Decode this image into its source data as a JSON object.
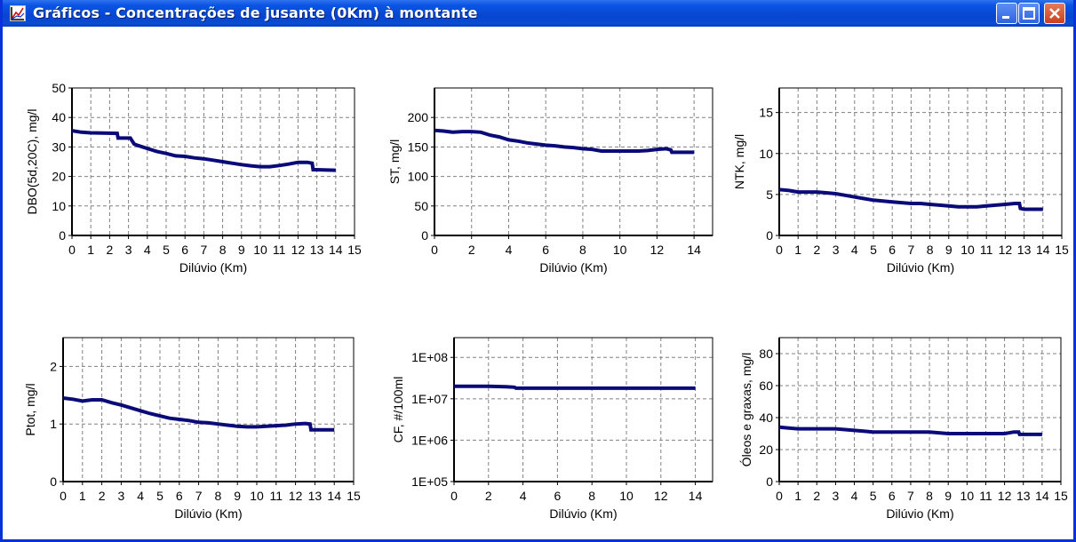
{
  "window": {
    "title": "Gráficos - Concentrações de jusante (0Km) à montante",
    "icon": "chart-icon",
    "buttons": [
      "minimize-icon",
      "maximize-icon",
      "close-icon"
    ]
  },
  "chart_data": [
    {
      "type": "line",
      "title": "",
      "xlabel": "Dilúvio (Km)",
      "ylabel": "DBO(5d,20C), mg/l",
      "xlim": [
        0,
        15
      ],
      "ylim": [
        0,
        50
      ],
      "xticks": [
        "0",
        "1",
        "2",
        "3",
        "4",
        "5",
        "6",
        "7",
        "8",
        "9",
        "10",
        "11",
        "12",
        "13",
        "14",
        "15"
      ],
      "yticks": [
        "0",
        "10",
        "20",
        "30",
        "40",
        "50"
      ],
      "grid": true,
      "color": "#0a0a78",
      "x": [
        0,
        0.5,
        1.0,
        2.4,
        2.45,
        3.1,
        3.3,
        3.5,
        4,
        4.5,
        5,
        5.5,
        6,
        6.5,
        7,
        7.5,
        8,
        8.5,
        9,
        9.5,
        10,
        10.5,
        11,
        11.5,
        12,
        12.5,
        12.75,
        12.8,
        13,
        14
      ],
      "y": [
        35.5,
        35,
        34.8,
        34.6,
        33,
        33,
        31,
        30.5,
        29.5,
        28.5,
        27.8,
        27,
        26.8,
        26.3,
        26,
        25.5,
        25,
        24.5,
        24,
        23.6,
        23.3,
        23.3,
        23.7,
        24.2,
        24.8,
        24.8,
        24.5,
        22.3,
        22.3,
        22.1
      ]
    },
    {
      "type": "line",
      "title": "",
      "xlabel": "Dilúvio (Km)",
      "ylabel": "ST, mg/l",
      "xlim": [
        0,
        15
      ],
      "ylim": [
        0,
        250
      ],
      "xticks": [
        "0",
        "2",
        "4",
        "6",
        "8",
        "10",
        "12",
        "14"
      ],
      "yticks": [
        "0",
        "50",
        "100",
        "150",
        "200"
      ],
      "grid": true,
      "color": "#0a0a78",
      "x": [
        0,
        0.5,
        1,
        1.5,
        2,
        2.5,
        3,
        3.5,
        4,
        4.5,
        5,
        5.5,
        6,
        6.5,
        7,
        7.5,
        8,
        8.5,
        9,
        9.5,
        10,
        10.5,
        11,
        11.5,
        12,
        12.5,
        12.75,
        12.8,
        13,
        14
      ],
      "y": [
        178,
        177,
        175,
        176,
        176,
        175,
        170,
        167,
        162,
        160,
        157,
        155,
        153,
        152,
        150,
        149,
        147,
        146,
        143,
        143,
        143,
        143,
        143,
        144,
        146,
        147,
        145,
        141,
        141,
        141
      ]
    },
    {
      "type": "line",
      "title": "",
      "xlabel": "Dilúvio (Km)",
      "ylabel": "NTK, mg/l",
      "xlim": [
        0,
        15
      ],
      "ylim": [
        0,
        18
      ],
      "xticks": [
        "0",
        "1",
        "2",
        "3",
        "4",
        "5",
        "6",
        "7",
        "8",
        "9",
        "10",
        "11",
        "12",
        "13",
        "14",
        "15"
      ],
      "yticks": [
        "0",
        "5",
        "10",
        "15"
      ],
      "grid": true,
      "color": "#0a0a78",
      "x": [
        0,
        0.5,
        1,
        2,
        2.5,
        3,
        3.5,
        4,
        4.5,
        5,
        5.5,
        6,
        6.5,
        7,
        7.5,
        8,
        8.5,
        9,
        9.5,
        10,
        10.5,
        11,
        11.5,
        12,
        12.5,
        12.75,
        12.8,
        13,
        14
      ],
      "y": [
        5.6,
        5.5,
        5.3,
        5.3,
        5.2,
        5.1,
        4.9,
        4.7,
        4.5,
        4.3,
        4.2,
        4.1,
        4.0,
        3.9,
        3.9,
        3.8,
        3.7,
        3.6,
        3.5,
        3.5,
        3.5,
        3.6,
        3.7,
        3.8,
        3.9,
        3.9,
        3.3,
        3.2,
        3.2
      ]
    },
    {
      "type": "line",
      "title": "",
      "xlabel": "Dilúvio (Km)",
      "ylabel": "Ptot, mg/l",
      "xlim": [
        0,
        15
      ],
      "ylim": [
        0,
        2.5
      ],
      "xticks": [
        "0",
        "1",
        "2",
        "3",
        "4",
        "5",
        "6",
        "7",
        "8",
        "9",
        "10",
        "11",
        "12",
        "13",
        "14",
        "15"
      ],
      "yticks": [
        "0",
        "1",
        "2"
      ],
      "grid": true,
      "color": "#0a0a78",
      "x": [
        0,
        0.5,
        1,
        1.5,
        2,
        2.5,
        3,
        3.5,
        4,
        4.5,
        5,
        5.5,
        6,
        6.5,
        7,
        7.5,
        8,
        8.5,
        9,
        9.5,
        10,
        10.5,
        11,
        11.5,
        12,
        12.5,
        12.75,
        12.8,
        13,
        14
      ],
      "y": [
        1.45,
        1.43,
        1.4,
        1.42,
        1.42,
        1.37,
        1.33,
        1.28,
        1.23,
        1.18,
        1.14,
        1.1,
        1.08,
        1.06,
        1.03,
        1.02,
        1.0,
        0.98,
        0.96,
        0.95,
        0.95,
        0.96,
        0.97,
        0.98,
        1.0,
        1.01,
        1.0,
        0.9,
        0.9,
        0.9
      ]
    },
    {
      "type": "line",
      "title": "",
      "xlabel": "Dilúvio (Km)",
      "ylabel": "CF, #/100ml",
      "xlim": [
        0,
        15
      ],
      "ylim": [
        100000,
        300000000
      ],
      "log_scale_y": true,
      "xticks": [
        "0",
        "2",
        "4",
        "6",
        "8",
        "10",
        "12",
        "14"
      ],
      "yticks": [
        "1E+05",
        "1E+06",
        "1E+07",
        "1E+08"
      ],
      "grid": true,
      "color": "#0a0a78",
      "x": [
        0,
        0.5,
        1,
        2,
        3,
        3.5,
        3.6,
        5,
        7,
        9,
        11,
        13,
        14
      ],
      "y": [
        20000000,
        20000000,
        20000000,
        20000000,
        19500000,
        19000000,
        18000000,
        18000000,
        18000000,
        18000000,
        18000000,
        18000000,
        18000000
      ]
    },
    {
      "type": "line",
      "title": "",
      "xlabel": "Dilúvio (Km)",
      "ylabel": "Óleos e graxas, mg/l",
      "xlim": [
        0,
        15
      ],
      "ylim": [
        0,
        90
      ],
      "xticks": [
        "0",
        "1",
        "2",
        "3",
        "4",
        "5",
        "6",
        "7",
        "8",
        "9",
        "10",
        "11",
        "12",
        "13",
        "14",
        "15"
      ],
      "yticks": [
        "0",
        "20",
        "40",
        "60",
        "80"
      ],
      "grid": true,
      "color": "#0a0a78",
      "x": [
        0,
        0.5,
        1,
        2,
        3,
        3.5,
        4,
        4.5,
        5,
        6,
        7,
        8,
        8.5,
        9,
        10,
        11,
        12,
        12.5,
        12.75,
        12.8,
        13,
        14
      ],
      "y": [
        34,
        33.5,
        33,
        33,
        33,
        32.5,
        32,
        31.5,
        31,
        31,
        31,
        31,
        30.5,
        30,
        30,
        30,
        30,
        31,
        31,
        29.5,
        29.5,
        29.5
      ]
    }
  ]
}
